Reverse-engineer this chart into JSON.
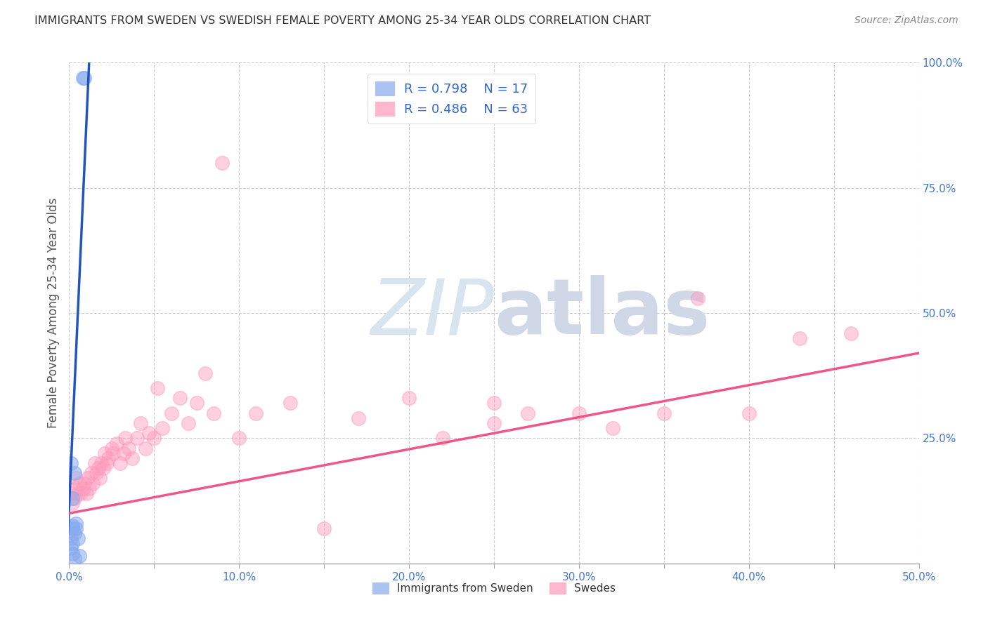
{
  "title": "IMMIGRANTS FROM SWEDEN VS SWEDISH FEMALE POVERTY AMONG 25-34 YEAR OLDS CORRELATION CHART",
  "source": "Source: ZipAtlas.com",
  "ylabel": "Female Poverty Among 25-34 Year Olds",
  "xlim": [
    0.0,
    0.5
  ],
  "ylim": [
    0.0,
    1.0
  ],
  "xticks": [
    0.0,
    0.05,
    0.1,
    0.15,
    0.2,
    0.25,
    0.3,
    0.35,
    0.4,
    0.45,
    0.5
  ],
  "xtick_labels": [
    "0.0%",
    "",
    "10.0%",
    "",
    "20.0%",
    "",
    "30.0%",
    "",
    "40.0%",
    "",
    "50.0%"
  ],
  "yticks_right": [
    0.0,
    0.25,
    0.5,
    0.75,
    1.0
  ],
  "ytick_labels_right": [
    "",
    "25.0%",
    "50.0%",
    "75.0%",
    "100.0%"
  ],
  "tick_color": "#4477CC",
  "grid_color": "#CCCCCC",
  "blue_color": "#88AAEE",
  "pink_color": "#FF99BB",
  "blue_edge": "#5588DD",
  "pink_edge": "#FF6699",
  "watermark_color": "#DDEEFF",
  "blue_scatter_x": [
    0.008,
    0.009,
    0.003,
    0.002,
    0.001,
    0.004,
    0.003,
    0.005,
    0.002,
    0.001,
    0.002,
    0.006,
    0.003,
    0.002,
    0.001,
    0.002,
    0.004
  ],
  "blue_scatter_y": [
    0.97,
    0.97,
    0.18,
    0.13,
    0.2,
    0.07,
    0.06,
    0.05,
    0.04,
    0.03,
    0.02,
    0.015,
    0.01,
    0.07,
    0.05,
    0.075,
    0.08
  ],
  "pink_scatter_x": [
    0.001,
    0.002,
    0.003,
    0.004,
    0.004,
    0.005,
    0.006,
    0.007,
    0.008,
    0.009,
    0.01,
    0.011,
    0.012,
    0.013,
    0.014,
    0.015,
    0.016,
    0.017,
    0.018,
    0.019,
    0.02,
    0.021,
    0.022,
    0.023,
    0.025,
    0.026,
    0.028,
    0.03,
    0.032,
    0.033,
    0.035,
    0.037,
    0.04,
    0.042,
    0.045,
    0.047,
    0.05,
    0.052,
    0.055,
    0.06,
    0.065,
    0.07,
    0.075,
    0.08,
    0.085,
    0.09,
    0.1,
    0.11,
    0.13,
    0.15,
    0.17,
    0.2,
    0.22,
    0.25,
    0.27,
    0.3,
    0.32,
    0.35,
    0.37,
    0.4,
    0.43,
    0.46,
    0.25
  ],
  "pink_scatter_y": [
    0.14,
    0.12,
    0.13,
    0.15,
    0.17,
    0.14,
    0.16,
    0.14,
    0.15,
    0.16,
    0.14,
    0.17,
    0.15,
    0.18,
    0.16,
    0.2,
    0.18,
    0.19,
    0.17,
    0.2,
    0.19,
    0.22,
    0.2,
    0.21,
    0.23,
    0.22,
    0.24,
    0.2,
    0.22,
    0.25,
    0.23,
    0.21,
    0.25,
    0.28,
    0.23,
    0.26,
    0.25,
    0.35,
    0.27,
    0.3,
    0.33,
    0.28,
    0.32,
    0.38,
    0.3,
    0.8,
    0.25,
    0.3,
    0.32,
    0.07,
    0.29,
    0.33,
    0.25,
    0.32,
    0.3,
    0.3,
    0.27,
    0.3,
    0.53,
    0.3,
    0.45,
    0.46,
    0.28
  ],
  "blue_trend_x": [
    -0.001,
    0.012
  ],
  "blue_trend_y": [
    0.04,
    1.02
  ],
  "pink_trend_x": [
    0.0,
    0.5
  ],
  "pink_trend_y": [
    0.1,
    0.42
  ]
}
